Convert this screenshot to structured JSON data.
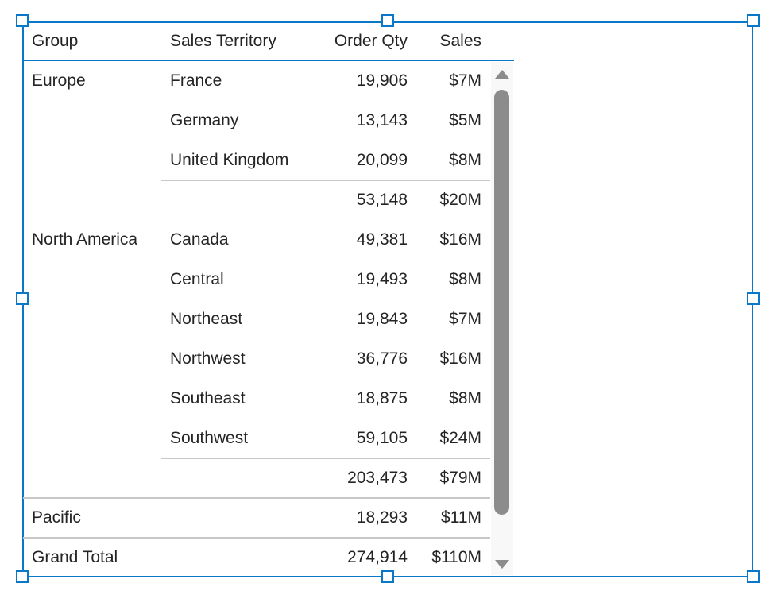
{
  "headers": {
    "group": "Group",
    "territory": "Sales Territory",
    "qty": "Order Qty",
    "sales": "Sales"
  },
  "rows": [
    {
      "group": "Europe",
      "territory": "France",
      "qty": "19,906",
      "sales": "$7M"
    },
    {
      "group": "",
      "territory": "Germany",
      "qty": "13,143",
      "sales": "$5M"
    },
    {
      "group": "",
      "territory": "United Kingdom",
      "qty": "20,099",
      "sales": "$8M",
      "sep_after": "sub"
    },
    {
      "group": "",
      "territory": "",
      "qty": "53,148",
      "sales": "$20M",
      "subtotal": true
    },
    {
      "group": "North America",
      "territory": "Canada",
      "qty": "49,381",
      "sales": "$16M"
    },
    {
      "group": "",
      "territory": "Central",
      "qty": "19,493",
      "sales": "$8M"
    },
    {
      "group": "",
      "territory": "Northeast",
      "qty": "19,843",
      "sales": "$7M"
    },
    {
      "group": "",
      "territory": "Northwest",
      "qty": "36,776",
      "sales": "$16M"
    },
    {
      "group": "",
      "territory": "Southeast",
      "qty": "18,875",
      "sales": "$8M"
    },
    {
      "group": "",
      "territory": "Southwest",
      "qty": "59,105",
      "sales": "$24M",
      "sep_after": "sub"
    },
    {
      "group": "",
      "territory": "",
      "qty": "203,473",
      "sales": "$79M",
      "subtotal": true,
      "sep_after": "full"
    },
    {
      "group": "Pacific",
      "territory": "",
      "qty": "18,293",
      "sales": "$11M",
      "sep_after": "full"
    },
    {
      "group": "Grand Total",
      "territory": "",
      "qty": "274,914",
      "sales": "$110M",
      "total": true
    }
  ],
  "colors": {
    "selection": "#0a78c8",
    "scrollbar": "#8c8c8c"
  }
}
